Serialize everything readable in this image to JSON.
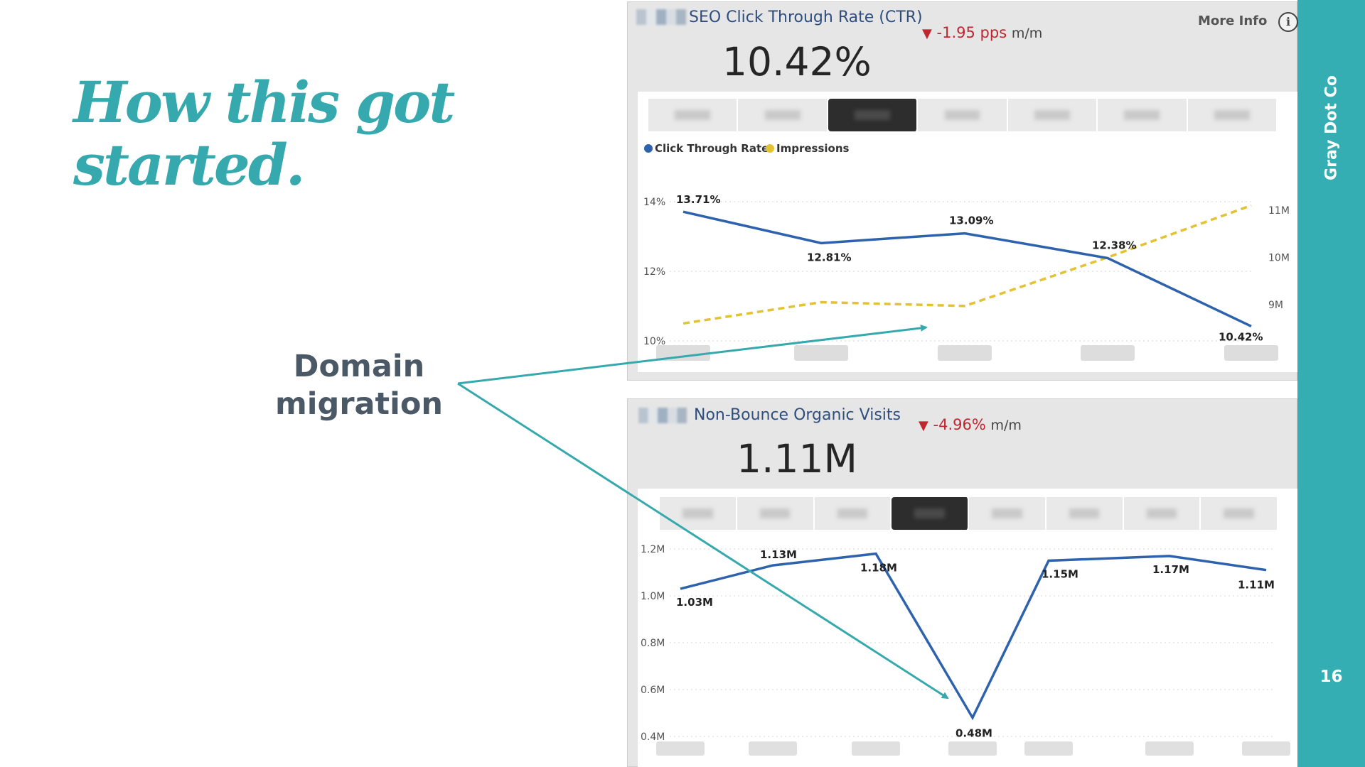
{
  "slide": {
    "title_lines": [
      "How this got",
      "started."
    ],
    "callout_lines": [
      "Domain",
      "migration"
    ],
    "brand": "Gray Dot Co",
    "page_number": "16"
  },
  "colors": {
    "teal": "#35a9ad",
    "sidebar": "#34aeb2",
    "series_blue": "#2e62ad",
    "series_yellow": "#e3c234",
    "negative": "#c0262d"
  },
  "ctr_card": {
    "title": "SEO Click Through Rate (CTR)",
    "delta_arrow": "▼",
    "delta_value": "-1.95 pps",
    "delta_unit": "m/m",
    "kpi": "10.42%",
    "more_info": "More Info",
    "info_icon": "info-icon",
    "legend": [
      "Click Through Rate",
      "Impressions"
    ]
  },
  "nbv_card": {
    "title": "Non-Bounce Organic Visits",
    "delta_arrow": "▼",
    "delta_value": "-4.96%",
    "delta_unit": "m/m",
    "kpi": "1.11M"
  },
  "chart_data": [
    {
      "type": "line",
      "series": [
        {
          "name": "Click Through Rate",
          "axis": "left",
          "x": [
            0,
            1,
            2,
            3,
            4
          ],
          "values": [
            13.71,
            12.81,
            13.09,
            12.38,
            10.42
          ],
          "labels": [
            "13.71%",
            "12.81%",
            "13.09%",
            "12.38%",
            "10.42%"
          ],
          "color": "#2e62ad",
          "style": "solid"
        },
        {
          "name": "Impressions",
          "axis": "right",
          "x": [
            0,
            1,
            2,
            3,
            4
          ],
          "values": [
            8.6,
            9.05,
            8.97,
            10.0,
            11.1
          ],
          "color": "#e3c234",
          "style": "dashed"
        }
      ],
      "y_left_ticks": [
        "10%",
        "12%",
        "14%"
      ],
      "y_left_range": [
        10,
        14
      ],
      "y_left_label_values": [
        10,
        12,
        14
      ],
      "y_right_ticks": [
        "9M",
        "10M",
        "11M"
      ],
      "y_right_range": [
        8.2,
        11.3
      ],
      "y_right_label_values": [
        9,
        10,
        11
      ],
      "grid": true,
      "legend_position": "top-left"
    },
    {
      "type": "line",
      "series": [
        {
          "name": "Non-Bounce Organic Visits",
          "x": [
            0,
            1,
            2,
            3,
            4,
            5,
            6
          ],
          "values": [
            1.03,
            1.13,
            1.18,
            0.48,
            1.15,
            1.17,
            1.11
          ],
          "labels": [
            "1.03M",
            "1.13M",
            "1.18M",
            "0.48M",
            "1.15M",
            "1.17M",
            "1.11M"
          ],
          "color": "#2e62ad",
          "style": "solid"
        }
      ],
      "y_ticks": [
        "0.4M",
        "0.6M",
        "0.8M",
        "1.0M",
        "1.2M"
      ],
      "y_tick_values": [
        0.4,
        0.6,
        0.8,
        1.0,
        1.2
      ],
      "y_range": [
        0.4,
        1.2
      ],
      "grid": true
    }
  ]
}
